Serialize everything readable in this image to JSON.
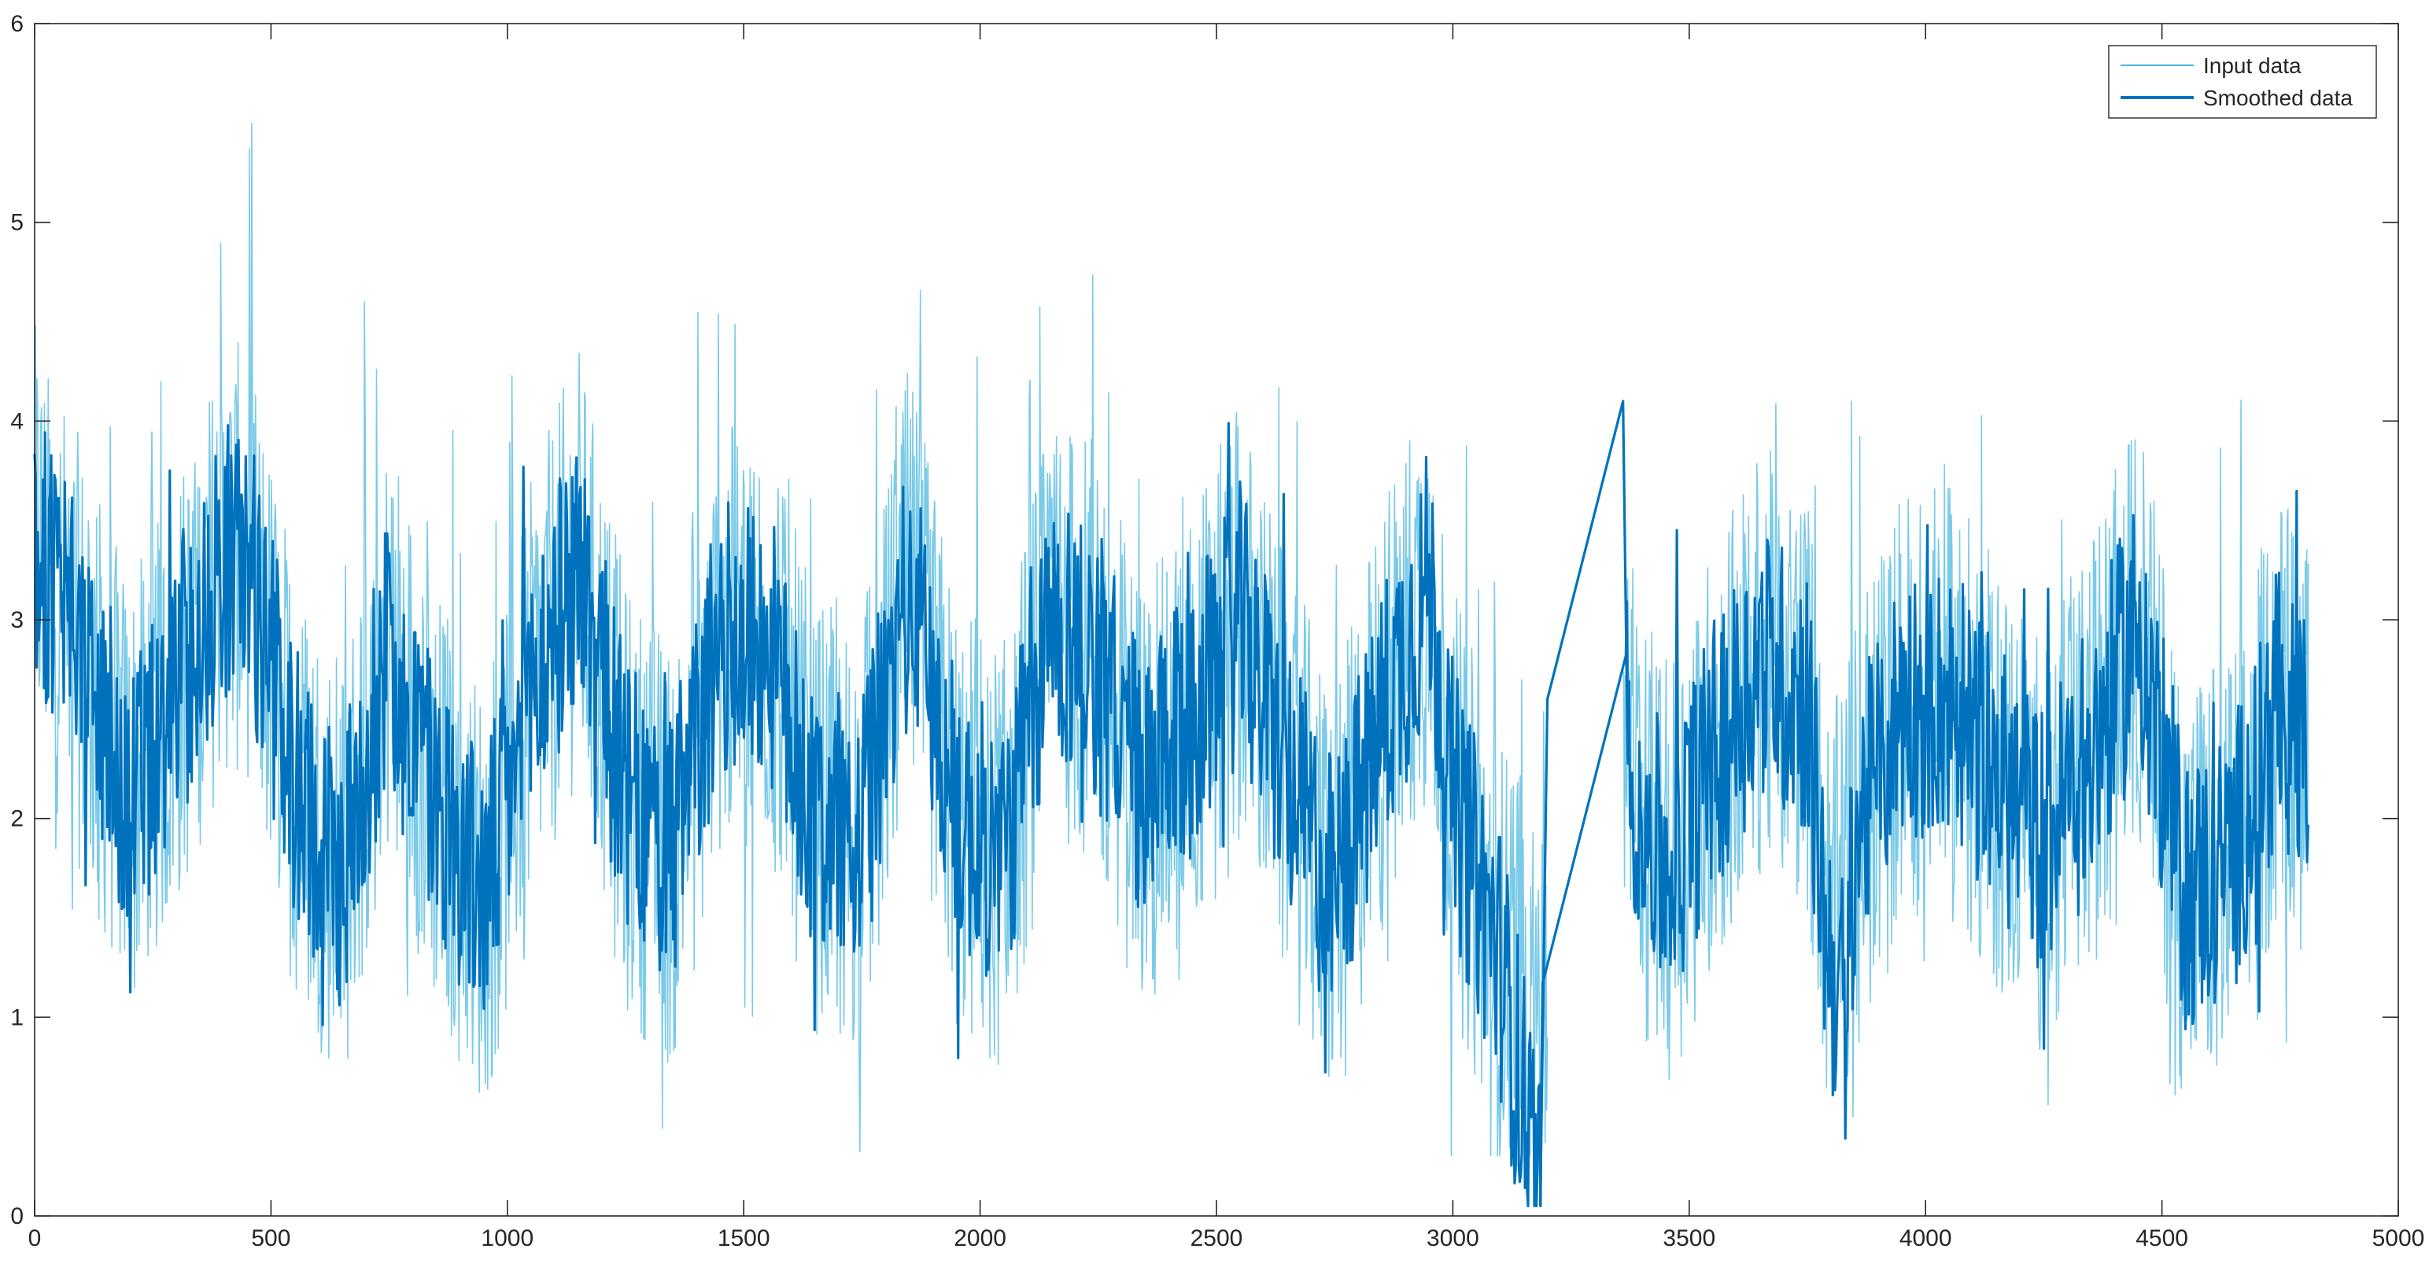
{
  "chart_data": {
    "type": "line",
    "title": "",
    "xlabel": "",
    "ylabel": "",
    "xlim": [
      0,
      5000
    ],
    "ylim": [
      0,
      6
    ],
    "xticks": [
      0,
      500,
      1000,
      1500,
      2000,
      2500,
      3000,
      3500,
      4000,
      4500,
      5000
    ],
    "yticks": [
      0,
      1,
      2,
      3,
      4,
      5,
      6
    ],
    "xtick_labels": [
      "0",
      "500",
      "1000",
      "1500",
      "2000",
      "2500",
      "3000",
      "3500",
      "4000",
      "4500",
      "5000"
    ],
    "ytick_labels": [
      "0",
      "1",
      "2",
      "3",
      "4",
      "5",
      "6"
    ],
    "grid": false,
    "legend_position": "top-right",
    "legend": [
      "Input data",
      "Smoothed data"
    ],
    "series": [
      {
        "name": "Input data",
        "style": "thin",
        "color": "#4db8e0",
        "note_range": "noisy signal, values approximately 0.3 to 5.5",
        "x": [
          0,
          100,
          200,
          300,
          400,
          450,
          550,
          650,
          750,
          850,
          950,
          1050,
          1150,
          1250,
          1350,
          1450,
          1550,
          1650,
          1750,
          1850,
          1950,
          2050,
          2150,
          2250,
          2350,
          2450,
          2550,
          2650,
          2750,
          2850,
          2950,
          3000,
          3100,
          3200,
          3360,
          3450,
          3550,
          3650,
          3750,
          3800,
          3850,
          3950,
          4050,
          4150,
          4250,
          4350,
          4450,
          4550,
          4650,
          4750,
          4810
        ],
        "y": [
          3.4,
          2.8,
          2.1,
          2.6,
          3.3,
          3.3,
          2.2,
          1.7,
          2.9,
          2.1,
          1.6,
          2.6,
          3.3,
          2.1,
          1.8,
          2.9,
          2.9,
          2.0,
          1.9,
          3.2,
          2.0,
          1.8,
          3.0,
          2.8,
          2.1,
          2.5,
          3.0,
          2.2,
          1.6,
          2.5,
          3.2,
          2.1,
          1.3,
          1.2,
          2.3,
          1.7,
          2.3,
          2.8,
          2.6,
          1.4,
          1.9,
          2.6,
          2.6,
          2.2,
          1.9,
          2.3,
          3.0,
          1.6,
          1.8,
          2.6,
          2.3
        ]
      },
      {
        "name": "Smoothed data",
        "style": "thick",
        "color": "#0072bd",
        "x": [
          0,
          100,
          200,
          300,
          400,
          450,
          550,
          650,
          750,
          850,
          950,
          1050,
          1150,
          1250,
          1350,
          1450,
          1550,
          1650,
          1750,
          1850,
          1950,
          2050,
          2150,
          2250,
          2350,
          2450,
          2550,
          2650,
          2750,
          2850,
          2950,
          3000,
          3100,
          3185,
          3210,
          3360,
          3370,
          3450,
          3550,
          3650,
          3750,
          3790,
          3830,
          3850,
          3950,
          4050,
          4150,
          4250,
          4350,
          4450,
          4550,
          4650,
          4750,
          4810
        ],
        "y": [
          3.4,
          2.8,
          2.1,
          2.6,
          3.3,
          3.3,
          2.2,
          1.7,
          2.9,
          2.1,
          1.6,
          2.6,
          3.3,
          2.1,
          1.8,
          2.9,
          2.9,
          2.0,
          1.9,
          3.2,
          2.0,
          1.8,
          3.0,
          2.8,
          2.1,
          2.5,
          3.0,
          2.2,
          1.6,
          2.5,
          3.2,
          2.1,
          1.3,
          0.05,
          2.6,
          4.1,
          2.3,
          1.7,
          2.3,
          2.8,
          2.6,
          1.4,
          1.0,
          1.9,
          2.6,
          2.6,
          2.2,
          1.9,
          2.3,
          3.0,
          1.6,
          1.8,
          2.6,
          2.3
        ]
      }
    ]
  }
}
